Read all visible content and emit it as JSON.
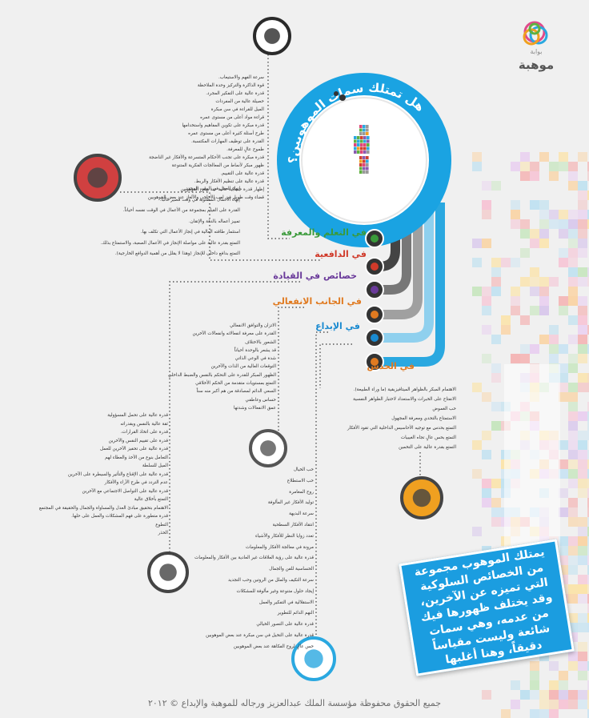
{
  "logo": {
    "caption": "بوابة",
    "name": "موهبة"
  },
  "title": "هل تمتلك سمات الموهوبين؟",
  "sections": [
    {
      "label": "في التعلم والمعرفة",
      "items": [
        "سرعة الفهم والاستيعاب.",
        "قوة الذاكرة والتركيز وحدة الملاحظة",
        "قدرة عالية على التفكير المجرد.",
        "حصيلة عالية من المفردات",
        "الميل للقراءة في سن مبكرة",
        "قراءة مواد أعلى من مستوى عمره",
        "قدرة مبكرة على تكوين المفاهيم واستخدامها",
        "طرح أسئلة كثيرة أعلى من مستوى عمره",
        "القدرة على توظيف المهارات المكتسبة.",
        "طموح عالٍ للمعرفة.",
        "قدرة مبكرة على تجنب الأحكام المتسرعة والأفكار غير الناضجة",
        "ظهور مبكر لأنماط من المعالجات الفكرية المتنوعة",
        "قدرة عالية على التقييم.",
        "قدرة عالية على تنظيم الأفكار والربط.",
        "إظهار قدرة حسابية عالية عند بعض الموهوبين",
        "قضاء وقت طويل في لعب الأحاجي والألغاز عند بعض الموهوبين"
      ]
    },
    {
      "label": "في الدافعية",
      "items": [
        "إنهاء العمل في الوقت المحدد.",
        "إنهاء الأعمال المطلوبة في وقت قصير غالباً.",
        "القدرة على القيام بمجموعة من الأعمال في الوقت نفسه أحياناً.",
        "تمييز أعماله بالدقة والإتقان.",
        "استثمار طاقته العالية في إنجاز الأعمال التي تكلف بها.",
        "التمتع بقدرة عالية على مواصلة الإنجاز في الأعمال الصعبة، والاستمتاع بذلك.",
        "التمتع بدافع داخلي للإنجاز (وهذا لا يقلل من أهمية الدوافع الخارجية)."
      ]
    },
    {
      "label": "خصائص في القيادة",
      "items": [
        "قدرة عالية على تحمل المسؤولية",
        "ثقة عالية بالنفس وبقدراته",
        "قدرة على اتخاذ القرارات.",
        "قدرة على تقييم النفس والآخرين",
        "قدرة عالية على تحفيز الآخرين للعمل",
        "التعامل بنوع من الأخذ والعطاء لهم",
        "الميل للسلطة",
        "قدرة عالية على الإقناع والتأثير والسيطرة على الآخرين",
        "عدم التردد في طرح الآراء والأفكار",
        "قدرة عالية على التواصل الاجتماعي مع الآخرين",
        "التمتع بأخلاق عالية",
        "الاهتمام بتحقيق مبادئ العدل والمساواة والجمال والحقيقة في المجتمع",
        "قدرة متطورة على فهم المشكلات والعمل على حلها.",
        "التطوع",
        "الحذر"
      ]
    },
    {
      "label": "في الجانب الانفعالي",
      "items": [
        "الاتزان والتوافق الانفعالي",
        "القدرة على معرفة انفعالاته وانفعالات الآخرين",
        "الشعور بالاختلاف",
        "قد يشعر بالوحدة أحياناً",
        "شدة في الوعي الذاتي",
        "التوقعات العالية من الذات والآخرين",
        "الظهور المبكر للقدرة على التحكم بالنفس والضبط الداخلي",
        "التمتع بمستويات متقدمة من الحكم الأخلاقي",
        "السعي الدائم لمصادقة من هم أكبر منه سناً",
        "حساس وعاطفي",
        "عمق الانفعالات وشدتها"
      ]
    },
    {
      "label": "في الإبداع",
      "items": [
        "حب الخيال",
        "حب الاستطلاع",
        "روح المغامرة",
        "توليد الأفكار غير المألوفة",
        "سرعة البديهة",
        "انتقاد الأفكار السطحية",
        "تعدد زوايا النظر للأفكار والأشياء",
        "مرونة في معالجة الأفكار والمعلومات",
        "قدرة عالية على رؤية العلاقات غير العادية بين الأفكار والمعلومات",
        "الحساسية للفن والجمال",
        "سرعة التكيف والملل من الروتين وحب التجديد",
        "إيجاد حلول متنوعة وغير مألوفة للمشكلات",
        "الاستقلالية في التفكير والعمل",
        "النهم الدائم للتطوير",
        "قدرة عالية على التصور الخيالي",
        "قدرة عالية على التخيل في سن مبكرة عند بعض الموهوبين",
        "حس عالٍ لروح الفكاهة عند بعض الموهوبين"
      ]
    },
    {
      "label": "في الحدس",
      "items": [
        "الاهتمام المبكر بالظواهر الميتافيزيقية (ما وراء الطبيعة).",
        "الانفتاح على الخبرات والاستعداد لاختبار الظواهر النفسية",
        "حب الغموض",
        "الاستمتاع بالتحدي ومعرفة المجهول",
        "التمتع بحدس مع توجيه الأحاسيس الداخلية التي تقود الأفكار",
        "التمتع بحس عالٍ تجاه الغيبيات",
        "التمتع بقدرة عالية على التخمين"
      ]
    }
  ],
  "note": "يمتلك الموهوب مجموعة من الخصائص السلوكية التي تميزه عن الآخرين، وقد يختلف ظهورها فيك من عدمه، وهي سمات شائعة وليست مقياساً دقيقاً، وهنا أغلبها",
  "footer": "جميع الحقوق محفوظة مؤسسة الملك عبدالعزيز ورجاله للموهبة والإبداع © ٢٠١٢"
}
